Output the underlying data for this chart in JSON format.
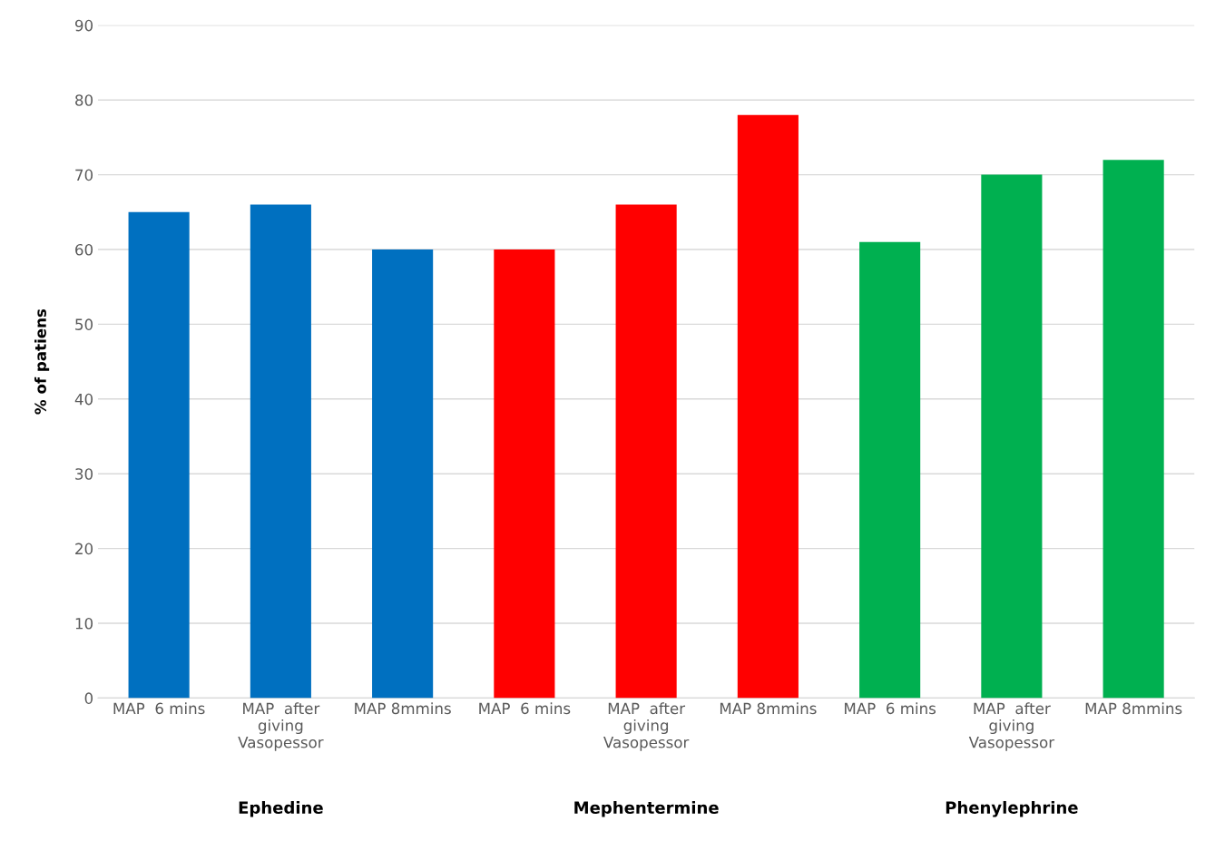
{
  "chart_data": {
    "type": "bar",
    "ylabel": "% of patiens",
    "categories": [
      "MAP  6 mins",
      "MAP  after\ngiving\nVasopessor",
      "MAP 8mmins",
      "MAP  6 mins",
      "MAP  after\ngiving\nVasopessor",
      "MAP 8mmins",
      "MAP  6 mins",
      "MAP  after\ngiving\nVasopessor",
      "MAP 8mmins"
    ],
    "values": [
      65,
      66,
      60,
      60,
      66,
      78,
      61,
      70,
      72
    ],
    "colors": [
      "#0070c0",
      "#0070c0",
      "#0070c0",
      "#ff0000",
      "#ff0000",
      "#ff0000",
      "#00b050",
      "#00b050",
      "#00b050"
    ],
    "annotations": [
      "Ephedine",
      "Mephentermine",
      "Phenylephrine"
    ],
    "ylim": [
      0,
      90
    ],
    "yticks": [
      0,
      10,
      20,
      30,
      40,
      50,
      60,
      70,
      80,
      90
    ],
    "grid": "y"
  }
}
